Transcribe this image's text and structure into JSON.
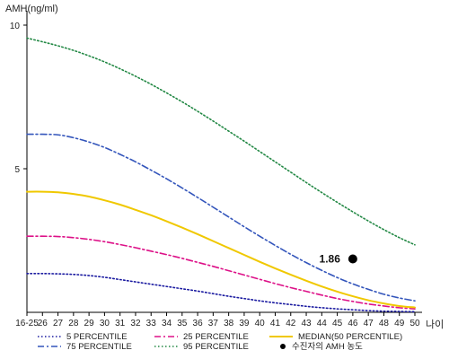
{
  "chart_data": {
    "type": "line",
    "ylabel": "AMH(ng/ml)",
    "xlabel": "나이",
    "x": [
      "16-25",
      "26",
      "27",
      "28",
      "29",
      "30",
      "31",
      "32",
      "33",
      "34",
      "35",
      "36",
      "37",
      "38",
      "39",
      "40",
      "41",
      "42",
      "43",
      "44",
      "45",
      "46",
      "47",
      "48",
      "49",
      "50"
    ],
    "ylim": [
      0,
      10.5
    ],
    "yticks": [
      5,
      10
    ],
    "series": [
      {
        "name": "5 PERCENTILE",
        "color": "#1a1aa0",
        "dash": "dotted",
        "values": [
          1.35,
          1.35,
          1.34,
          1.32,
          1.28,
          1.22,
          1.14,
          1.06,
          0.98,
          0.9,
          0.82,
          0.74,
          0.65,
          0.56,
          0.48,
          0.4,
          0.33,
          0.27,
          0.21,
          0.16,
          0.12,
          0.09,
          0.06,
          0.04,
          0.03,
          0.02
        ]
      },
      {
        "name": "25 PERCENTILE",
        "color": "#dd1188",
        "dash": "dashdot",
        "values": [
          2.65,
          2.65,
          2.64,
          2.6,
          2.54,
          2.46,
          2.36,
          2.25,
          2.13,
          2.01,
          1.88,
          1.74,
          1.6,
          1.45,
          1.3,
          1.15,
          1.0,
          0.86,
          0.73,
          0.6,
          0.48,
          0.38,
          0.29,
          0.22,
          0.16,
          0.12
        ]
      },
      {
        "name": "MEDIAN(50 PERCENTILE)",
        "color": "#f0c800",
        "dash": "solid",
        "values": [
          4.2,
          4.2,
          4.18,
          4.12,
          4.03,
          3.9,
          3.75,
          3.57,
          3.38,
          3.17,
          2.95,
          2.72,
          2.48,
          2.24,
          2.0,
          1.76,
          1.53,
          1.31,
          1.1,
          0.9,
          0.72,
          0.56,
          0.42,
          0.31,
          0.22,
          0.17
        ]
      },
      {
        "name": "75 PERCENTILE",
        "color": "#3355bb",
        "dash": "dashdot",
        "values": [
          6.2,
          6.2,
          6.18,
          6.08,
          5.93,
          5.74,
          5.5,
          5.24,
          4.95,
          4.65,
          4.33,
          4.0,
          3.66,
          3.32,
          2.98,
          2.65,
          2.33,
          2.02,
          1.73,
          1.46,
          1.21,
          0.99,
          0.8,
          0.63,
          0.5,
          0.4
        ]
      },
      {
        "name": "95 PERCENTILE",
        "color": "#228844",
        "dash": "dotted",
        "values": [
          9.55,
          9.42,
          9.28,
          9.12,
          8.93,
          8.72,
          8.48,
          8.22,
          7.94,
          7.64,
          7.33,
          7.0,
          6.66,
          6.31,
          5.96,
          5.6,
          5.24,
          4.88,
          4.52,
          4.17,
          3.83,
          3.5,
          3.18,
          2.88,
          2.6,
          2.35
        ]
      }
    ],
    "marker": {
      "name": "수진자의 AMH 농도",
      "x": "46",
      "y": 1.86,
      "label": "1.86",
      "color": "#000000"
    },
    "legend": {
      "placement": "bottom",
      "order": [
        "5 PERCENTILE",
        "25 PERCENTILE",
        "MEDIAN(50 PERCENTILE)",
        "75 PERCENTILE",
        "95 PERCENTILE",
        "수진자의 AMH 농도"
      ]
    },
    "grid": false
  }
}
